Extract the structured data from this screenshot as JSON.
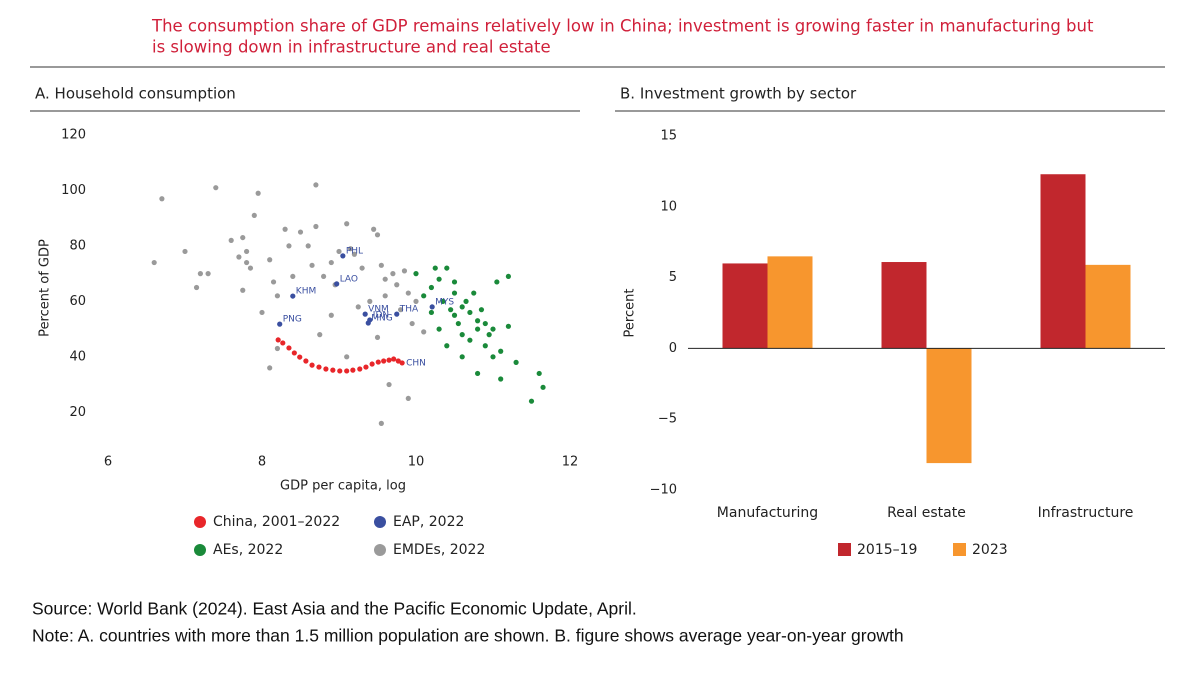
{
  "title": "The consumption share of GDP remains relatively low in China; investment is growing faster in manufacturing but is slowing down in infrastructure and real estate",
  "source": "Source: World Bank (2024). East Asia and the Pacific Economic Update, April.",
  "note": "Note: A. countries with more than 1.5 million population are shown. B. figure shows average year-on-year growth",
  "chart_data": [
    {
      "type": "scatter",
      "title": "A. Household consumption",
      "x_label": "GDP per capita, log",
      "y_label": "Percent of GDP",
      "xlim": [
        6,
        12
      ],
      "xticks": [
        6,
        8,
        10,
        12
      ],
      "ylim": [
        10,
        120
      ],
      "yticks": [
        20,
        40,
        60,
        80,
        100,
        120
      ],
      "grid": false,
      "series": [
        {
          "name": "EMDEs, 2022",
          "color": "#9a9a9a",
          "x": [
            6.6,
            6.7,
            7.0,
            7.15,
            7.2,
            7.3,
            7.4,
            7.6,
            7.7,
            7.75,
            7.75,
            7.8,
            7.8,
            7.85,
            7.95,
            7.9,
            8.0,
            8.1,
            8.1,
            8.15,
            8.2,
            8.3,
            8.35,
            8.4,
            8.5,
            8.6,
            8.65,
            8.7,
            8.7,
            8.75,
            8.8,
            8.9,
            8.95,
            9.0,
            9.1,
            9.15,
            9.2,
            9.3,
            9.4,
            9.45,
            9.5,
            9.55,
            9.6,
            9.6,
            9.7,
            9.75,
            9.8,
            9.85,
            9.9,
            9.95,
            10.0,
            10.1,
            9.1,
            9.65,
            9.9,
            9.55,
            8.2,
            8.9,
            9.5,
            9.25
          ],
          "values": [
            74,
            97,
            78,
            65,
            70,
            70,
            101,
            82,
            76,
            64,
            83,
            78,
            74,
            72,
            99,
            91,
            56,
            36,
            75,
            67,
            62,
            86,
            80,
            69,
            85,
            80,
            73,
            87,
            102,
            48,
            69,
            74,
            66,
            78,
            88,
            79,
            77,
            72,
            60,
            86,
            84,
            73,
            62,
            68,
            70,
            66,
            57,
            71,
            63,
            52,
            60,
            49,
            40,
            30,
            25,
            16,
            43,
            55,
            47,
            58
          ]
        },
        {
          "name": "AEs, 2022",
          "color": "#1a8a3a",
          "x": [
            10.1,
            10.2,
            10.3,
            10.35,
            10.4,
            10.45,
            10.5,
            10.5,
            10.55,
            10.6,
            10.6,
            10.65,
            10.7,
            10.7,
            10.75,
            10.8,
            10.8,
            10.85,
            10.9,
            10.9,
            10.95,
            11.0,
            11.0,
            11.05,
            11.1,
            11.2,
            10.3,
            10.4,
            10.5,
            10.6,
            10.8,
            11.1,
            11.2,
            11.3,
            11.5,
            11.6,
            11.65,
            10.2,
            10.25,
            10.0
          ],
          "values": [
            62,
            65,
            68,
            60,
            72,
            57,
            63,
            55,
            52,
            58,
            48,
            60,
            56,
            46,
            63,
            53,
            50,
            57,
            44,
            52,
            48,
            50,
            40,
            67,
            42,
            69,
            50,
            44,
            67,
            40,
            34,
            32,
            51,
            38,
            24,
            34,
            29,
            56,
            72,
            70
          ]
        },
        {
          "name": "EAP, 2022",
          "color": "#3a4fa0",
          "x": [
            9.05,
            8.97,
            8.4,
            8.23,
            9.34,
            9.4,
            9.38,
            9.75,
            10.21
          ],
          "values": [
            76.4,
            66.3,
            61.9,
            51.8,
            55.4,
            53.3,
            52.2,
            55.4,
            58.0
          ],
          "labels": [
            "PHL",
            "LAO",
            "KHM",
            "PNG",
            "VNM",
            "IDN",
            "MNG",
            "THA",
            "MYS"
          ]
        },
        {
          "name": "China, 2001–2022",
          "color": "#e8262a",
          "point_label": "CHN",
          "x": [
            8.21,
            8.27,
            8.35,
            8.42,
            8.49,
            8.57,
            8.65,
            8.74,
            8.83,
            8.92,
            9.01,
            9.1,
            9.18,
            9.27,
            9.35,
            9.43,
            9.51,
            9.58,
            9.65,
            9.71,
            9.77,
            9.82
          ],
          "values": [
            46.1,
            45.0,
            43.2,
            41.4,
            39.9,
            38.5,
            37.0,
            36.3,
            35.6,
            35.2,
            34.9,
            34.9,
            35.2,
            35.6,
            36.3,
            37.4,
            38.1,
            38.5,
            38.8,
            39.2,
            38.5,
            37.8
          ]
        }
      ]
    },
    {
      "type": "bar",
      "title": "B. Investment growth by sector",
      "y_label": "Percent",
      "categories": [
        "Manufacturing",
        "Real estate",
        "Infrastructure"
      ],
      "ylim": [
        -10,
        15
      ],
      "yticks": [
        {
          "value": -10,
          "label": "−10"
        },
        {
          "value": -5,
          "label": "−5"
        },
        0,
        5,
        10,
        15
      ],
      "grid": false,
      "series": [
        {
          "name": "2015–19",
          "color": "#c1272d",
          "values": [
            6.0,
            6.1,
            12.3
          ]
        },
        {
          "name": "2023",
          "color": "#f7962e",
          "values": [
            6.5,
            -8.1,
            5.9
          ]
        }
      ]
    }
  ]
}
